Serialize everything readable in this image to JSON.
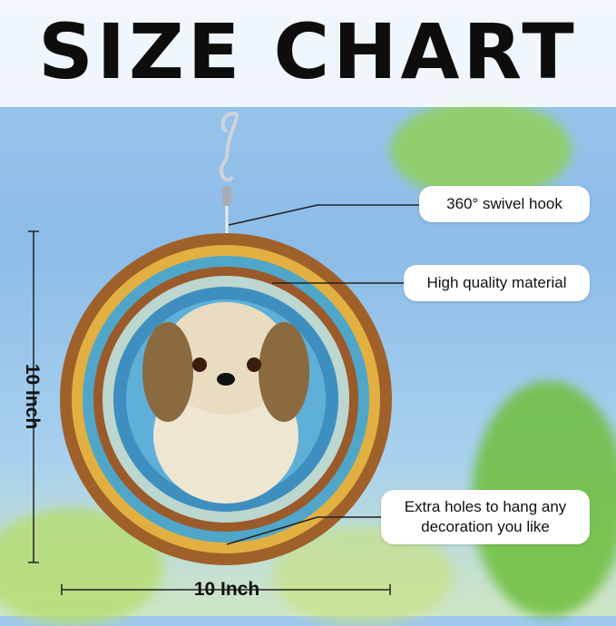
{
  "title": "SIZE CHART",
  "callouts": {
    "hook": "360° swivel hook",
    "material": "High quality material",
    "holes_line1": "Extra holes to hang any",
    "holes_line2": "decoration you like"
  },
  "dimensions": {
    "height": "10 Inch",
    "width": "10 Inch"
  },
  "colors": {
    "sky": "#8cbce8",
    "leaf": "#7ec84a",
    "ring_blue": "#4fa6c9",
    "ring_brown": "#a0602a"
  }
}
